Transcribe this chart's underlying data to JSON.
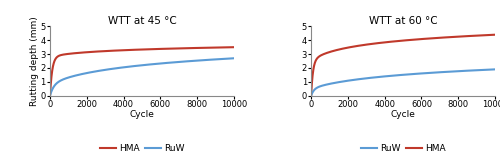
{
  "left_title": "WTT at 45 °C",
  "right_title": "WTT at 60 °C",
  "xlabel": "Cycle",
  "ylabel": "Rutting depth (mm)",
  "xlim": [
    0,
    10000
  ],
  "ylim": [
    0,
    5
  ],
  "yticks": [
    0,
    1,
    2,
    3,
    4,
    5
  ],
  "xticks": [
    0,
    2000,
    4000,
    6000,
    8000,
    10000
  ],
  "left_legend": [
    {
      "label": "HMA",
      "color": "#c0392b"
    },
    {
      "label": "RuW",
      "color": "#5b9bd5"
    }
  ],
  "right_legend": [
    {
      "label": "RuW",
      "color": "#5b9bd5"
    },
    {
      "label": "HMA",
      "color": "#c0392b"
    }
  ],
  "hma_color": "#c0392b",
  "ruw_color": "#5b9bd5",
  "linewidth": 1.5,
  "title_fontsize": 7.5,
  "label_fontsize": 6.5,
  "tick_fontsize": 6,
  "legend_fontsize": 6.5
}
